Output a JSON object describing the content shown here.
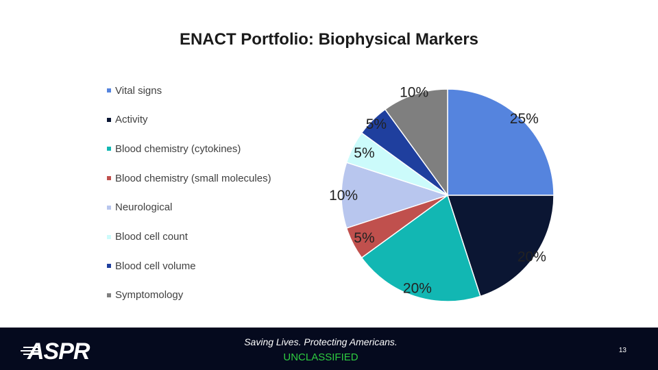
{
  "slide": {
    "tagline": "Saving Lives. Protecting Americans.",
    "classification": "UNCLASSIFIED",
    "page_number": "13",
    "logo_text": "ASPR"
  },
  "chart_data": {
    "type": "pie",
    "title": "ENACT Portfolio: Biophysical Markers",
    "legend_position": "left",
    "slices": [
      {
        "label": "Vital signs",
        "value": 25,
        "display": "25%",
        "color": "#5584de"
      },
      {
        "label": "Activity",
        "value": 20,
        "display": "20%",
        "color": "#0b1633"
      },
      {
        "label": "Blood chemistry (cytokines)",
        "value": 20,
        "display": "20%",
        "color": "#12b7b3"
      },
      {
        "label": "Blood chemistry (small molecules)",
        "value": 5,
        "display": "5%",
        "color": "#c0504d"
      },
      {
        "label": "Neurological",
        "value": 10,
        "display": "10%",
        "color": "#b8c6ee"
      },
      {
        "label": "Blood cell count",
        "value": 5,
        "display": "5%",
        "color": "#ccfbfb"
      },
      {
        "label": "Blood cell volume",
        "value": 5,
        "display": "5%",
        "color": "#1f3f9e"
      },
      {
        "label": "Symptomology",
        "value": 10,
        "display": "10%",
        "color": "#7f7f7f"
      }
    ]
  }
}
